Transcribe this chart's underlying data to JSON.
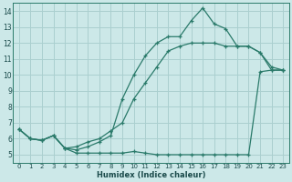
{
  "xlabel": "Humidex (Indice chaleur)",
  "background_color": "#cce8e8",
  "grid_color": "#aacfcf",
  "line_color": "#2a7a6a",
  "xlim": [
    -0.5,
    23.5
  ],
  "ylim": [
    4.5,
    14.5
  ],
  "xticks": [
    0,
    1,
    2,
    3,
    4,
    5,
    6,
    7,
    8,
    9,
    10,
    11,
    12,
    13,
    14,
    15,
    16,
    17,
    18,
    19,
    20,
    21,
    22,
    23
  ],
  "yticks": [
    5,
    6,
    7,
    8,
    9,
    10,
    11,
    12,
    13,
    14
  ],
  "line1_x": [
    0,
    1,
    2,
    3,
    4,
    5,
    6,
    7,
    8,
    9,
    10,
    11,
    12,
    13,
    14,
    15,
    16,
    17,
    18,
    19,
    20,
    21,
    22,
    23
  ],
  "line1_y": [
    6.6,
    6.0,
    5.9,
    6.2,
    5.4,
    5.1,
    5.1,
    5.1,
    5.1,
    5.1,
    5.2,
    5.1,
    5.0,
    5.0,
    5.0,
    5.0,
    5.0,
    5.0,
    5.0,
    5.0,
    5.0,
    10.2,
    10.3,
    10.3
  ],
  "line2_x": [
    0,
    1,
    2,
    3,
    4,
    5,
    6,
    7,
    8,
    9,
    10,
    11,
    12,
    13,
    14,
    15,
    16,
    17,
    18,
    19,
    20,
    21,
    22,
    23
  ],
  "line2_y": [
    6.6,
    6.0,
    5.9,
    6.2,
    5.4,
    5.5,
    5.8,
    6.0,
    6.5,
    7.0,
    8.5,
    9.5,
    10.5,
    11.5,
    11.8,
    12.0,
    12.0,
    12.0,
    11.8,
    11.8,
    11.8,
    11.4,
    10.3,
    10.3
  ],
  "line3_x": [
    0,
    1,
    2,
    3,
    4,
    5,
    6,
    7,
    8,
    9,
    10,
    11,
    12,
    13,
    14,
    15,
    16,
    17,
    18,
    19,
    20,
    21,
    22,
    23
  ],
  "line3_y": [
    6.6,
    6.0,
    5.9,
    6.2,
    5.4,
    5.3,
    5.5,
    5.8,
    6.2,
    8.5,
    10.0,
    11.2,
    12.0,
    12.4,
    12.4,
    13.4,
    14.2,
    13.2,
    12.9,
    11.8,
    11.8,
    11.4,
    10.5,
    10.3
  ]
}
